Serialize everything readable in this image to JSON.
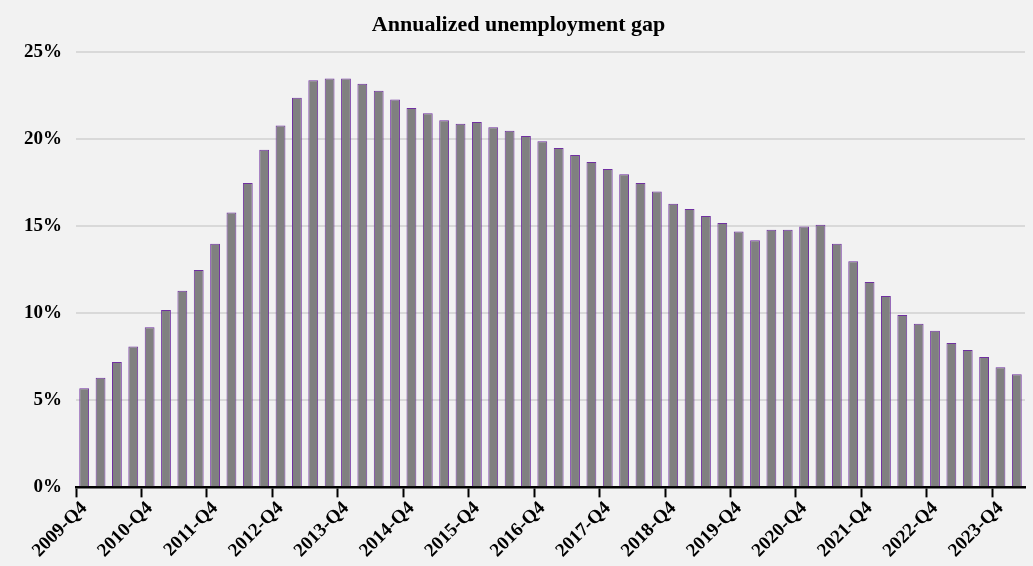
{
  "chart_data": {
    "type": "bar",
    "title": "Annualized unemployment gap",
    "categories": [
      "2009-Q4",
      null,
      null,
      null,
      "2010-Q4",
      null,
      null,
      null,
      "2011-Q4",
      null,
      null,
      null,
      "2012-Q4",
      null,
      null,
      null,
      "2013-Q4",
      null,
      null,
      null,
      "2014-Q4",
      null,
      null,
      null,
      "2015-Q4",
      null,
      null,
      null,
      "2016-Q4",
      null,
      null,
      null,
      "2017-Q4",
      null,
      null,
      null,
      "2018-Q4",
      null,
      null,
      null,
      "2019-Q4",
      null,
      null,
      null,
      "2020-Q4",
      null,
      null,
      null,
      "2021-Q4",
      null,
      null,
      null,
      "2022-Q4",
      null,
      null,
      null,
      "2023-Q4",
      null
    ],
    "values": [
      5.7,
      6.3,
      7.2,
      8.1,
      9.2,
      10.2,
      11.3,
      12.5,
      14.0,
      15.8,
      17.5,
      19.4,
      20.8,
      22.4,
      23.4,
      23.5,
      23.5,
      23.2,
      22.8,
      22.3,
      21.8,
      21.5,
      21.1,
      20.9,
      21.0,
      20.7,
      20.5,
      20.2,
      19.9,
      19.5,
      19.1,
      18.7,
      18.3,
      18.0,
      17.5,
      17.0,
      16.3,
      16.0,
      15.6,
      15.2,
      14.7,
      14.2,
      14.8,
      14.8,
      15.0,
      15.1,
      14.0,
      13.0,
      11.8,
      11.0,
      9.9,
      9.4,
      9.0,
      8.3,
      7.9,
      7.5,
      6.9,
      6.5
    ],
    "color": "#808080",
    "ylim": [
      0,
      25
    ],
    "yticks": [
      {
        "value": 0,
        "label": "0%"
      },
      {
        "value": 5,
        "label": "5%"
      },
      {
        "value": 10,
        "label": "10%"
      },
      {
        "value": 15,
        "label": "15%"
      },
      {
        "value": 20,
        "label": "20%"
      },
      {
        "value": 25,
        "label": "25%"
      }
    ],
    "grid": "y",
    "legend": false
  }
}
